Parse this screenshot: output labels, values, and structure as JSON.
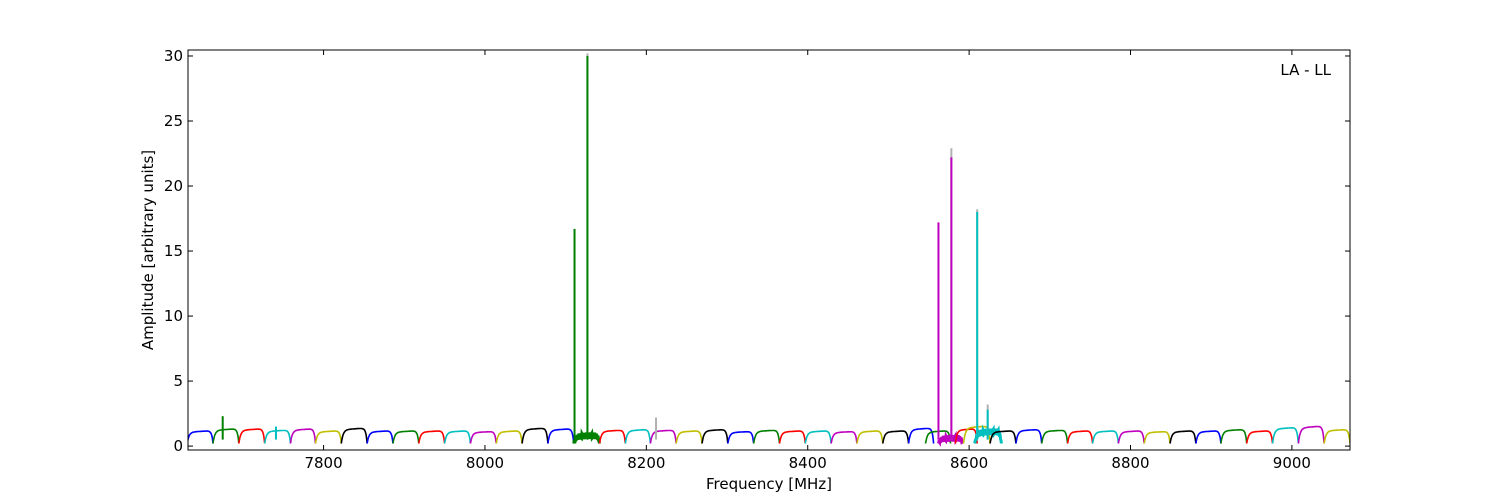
{
  "chart_data": {
    "type": "line",
    "title": "",
    "xlabel": "Frequency [MHz]",
    "ylabel": "Amplitude [arbitrary units]",
    "annotation": "LA - LL",
    "xlim": [
      7632,
      9072
    ],
    "ylim": [
      -0.3,
      30.46
    ],
    "xticks": [
      7800,
      8000,
      8200,
      8400,
      8600,
      8800,
      9000
    ],
    "yticks": [
      0,
      5,
      10,
      15,
      20,
      25,
      30
    ],
    "grid": false,
    "colors": {
      "b": "#0000ff",
      "g": "#008000",
      "r": "#ff0000",
      "c": "#00bfbf",
      "m": "#bf00bf",
      "y": "#bfbf00",
      "k": "#000000",
      "grey": "#b0b0b0"
    },
    "segments": [
      {
        "start": 7631,
        "end": 7663,
        "color": "b",
        "level": 1.15
      },
      {
        "start": 7663,
        "end": 7695,
        "color": "g",
        "level": 1.3
      },
      {
        "start": 7695,
        "end": 7727,
        "color": "r",
        "level": 1.3
      },
      {
        "start": 7727,
        "end": 7759,
        "color": "c",
        "level": 1.2
      },
      {
        "start": 7759,
        "end": 7790,
        "color": "m",
        "level": 1.3
      },
      {
        "start": 7790,
        "end": 7822,
        "color": "y",
        "level": 1.15
      },
      {
        "start": 7822,
        "end": 7854,
        "color": "k",
        "level": 1.35
      },
      {
        "start": 7854,
        "end": 7886,
        "color": "b",
        "level": 1.15
      },
      {
        "start": 7886,
        "end": 7918,
        "color": "g",
        "level": 1.15
      },
      {
        "start": 7918,
        "end": 7950,
        "color": "r",
        "level": 1.15
      },
      {
        "start": 7950,
        "end": 7982,
        "color": "c",
        "level": 1.15
      },
      {
        "start": 7982,
        "end": 8014,
        "color": "m",
        "level": 1.1
      },
      {
        "start": 8014,
        "end": 8046,
        "color": "y",
        "level": 1.15
      },
      {
        "start": 8046,
        "end": 8078,
        "color": "k",
        "level": 1.35
      },
      {
        "start": 8078,
        "end": 8110,
        "color": "b",
        "level": 1.3
      },
      {
        "start": 8110,
        "end": 8142,
        "color": "g",
        "level": 0.8,
        "noisy": true
      },
      {
        "start": 8142,
        "end": 8174,
        "color": "r",
        "level": 1.2
      },
      {
        "start": 8174,
        "end": 8205,
        "color": "c",
        "level": 1.25
      },
      {
        "start": 8205,
        "end": 8237,
        "color": "m",
        "level": 1.2
      },
      {
        "start": 8237,
        "end": 8269,
        "color": "y",
        "level": 1.15
      },
      {
        "start": 8269,
        "end": 8301,
        "color": "k",
        "level": 1.25
      },
      {
        "start": 8301,
        "end": 8333,
        "color": "b",
        "level": 1.1
      },
      {
        "start": 8333,
        "end": 8365,
        "color": "g",
        "level": 1.2
      },
      {
        "start": 8365,
        "end": 8397,
        "color": "r",
        "level": 1.15
      },
      {
        "start": 8397,
        "end": 8429,
        "color": "c",
        "level": 1.15
      },
      {
        "start": 8429,
        "end": 8461,
        "color": "m",
        "level": 1.1
      },
      {
        "start": 8461,
        "end": 8493,
        "color": "y",
        "level": 1.15
      },
      {
        "start": 8493,
        "end": 8525,
        "color": "k",
        "level": 1.15
      },
      {
        "start": 8525,
        "end": 8556,
        "color": "b",
        "level": 1.35
      },
      {
        "start": 8546,
        "end": 8577,
        "color": "g",
        "level": 1.15
      },
      {
        "start": 8562,
        "end": 8592,
        "color": "m",
        "level": 0.6,
        "noisy": true
      },
      {
        "start": 8583,
        "end": 8610,
        "color": "r",
        "level": 1.3
      },
      {
        "start": 8593,
        "end": 8626,
        "color": "y",
        "level": 1.5
      },
      {
        "start": 8607,
        "end": 8640,
        "color": "c",
        "level": 1.1,
        "noisy": true
      },
      {
        "start": 8626,
        "end": 8658,
        "color": "k",
        "level": 1.15
      },
      {
        "start": 8658,
        "end": 8690,
        "color": "b",
        "level": 1.25
      },
      {
        "start": 8690,
        "end": 8722,
        "color": "g",
        "level": 1.2
      },
      {
        "start": 8722,
        "end": 8753,
        "color": "r",
        "level": 1.15
      },
      {
        "start": 8753,
        "end": 8785,
        "color": "c",
        "level": 1.15
      },
      {
        "start": 8785,
        "end": 8817,
        "color": "m",
        "level": 1.15
      },
      {
        "start": 8817,
        "end": 8849,
        "color": "y",
        "level": 1.1
      },
      {
        "start": 8849,
        "end": 8881,
        "color": "k",
        "level": 1.15
      },
      {
        "start": 8881,
        "end": 8912,
        "color": "b",
        "level": 1.15
      },
      {
        "start": 8912,
        "end": 8944,
        "color": "g",
        "level": 1.25
      },
      {
        "start": 8944,
        "end": 8976,
        "color": "r",
        "level": 1.15
      },
      {
        "start": 8976,
        "end": 9008,
        "color": "c",
        "level": 1.4
      },
      {
        "start": 9008,
        "end": 9040,
        "color": "m",
        "level": 1.5
      },
      {
        "start": 9040,
        "end": 9072,
        "color": "y",
        "level": 1.25
      }
    ],
    "spikes": [
      {
        "x": 7675,
        "y": 2.3,
        "color": "g"
      },
      {
        "x": 7741,
        "y": 1.5,
        "color": "c"
      },
      {
        "x": 8111,
        "y": 16.7,
        "color": "g"
      },
      {
        "x": 8127,
        "y": 30.2,
        "color": "grey"
      },
      {
        "x": 8127,
        "y": 30.0,
        "color": "g"
      },
      {
        "x": 8212,
        "y": 2.2,
        "color": "grey"
      },
      {
        "x": 8562,
        "y": 17.2,
        "color": "m"
      },
      {
        "x": 8578,
        "y": 22.9,
        "color": "grey"
      },
      {
        "x": 8578,
        "y": 22.2,
        "color": "m"
      },
      {
        "x": 8610,
        "y": 18.2,
        "color": "grey"
      },
      {
        "x": 8610,
        "y": 18.0,
        "color": "c"
      },
      {
        "x": 8623,
        "y": 3.2,
        "color": "grey"
      },
      {
        "x": 8623,
        "y": 2.8,
        "color": "c"
      }
    ]
  }
}
